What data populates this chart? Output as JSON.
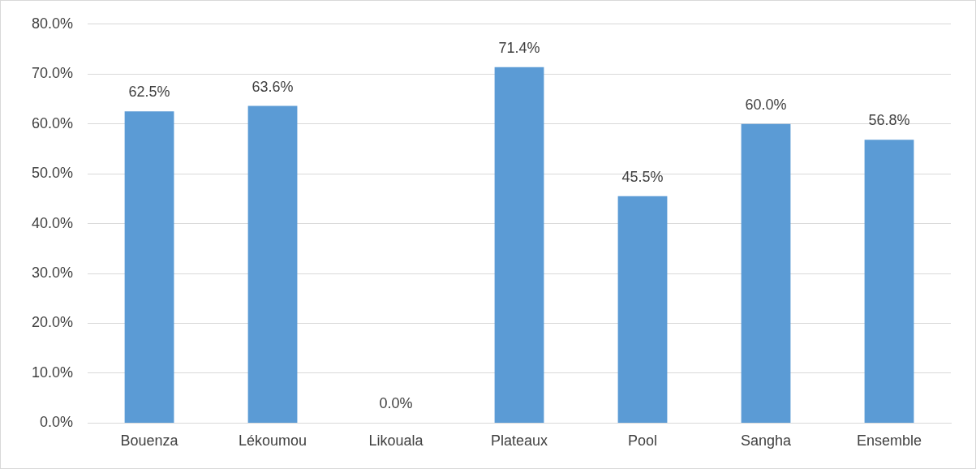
{
  "chart_data": {
    "type": "bar",
    "categories": [
      "Bouenza",
      "Lékoumou",
      "Likouala",
      "Plateaux",
      "Pool",
      "Sangha",
      "Ensemble"
    ],
    "values": [
      62.5,
      63.6,
      0.0,
      71.4,
      45.5,
      60.0,
      56.8
    ],
    "value_labels": [
      "62.5%",
      "63.6%",
      "0.0%",
      "71.4%",
      "45.5%",
      "60.0%",
      "56.8%"
    ],
    "color": "#5b9bd5",
    "ylim": [
      0,
      80
    ],
    "yticks": [
      {
        "value": 0,
        "label": "0.0%"
      },
      {
        "value": 10,
        "label": "10.0%"
      },
      {
        "value": 20,
        "label": "20.0%"
      },
      {
        "value": 30,
        "label": "30.0%"
      },
      {
        "value": 40,
        "label": "40.0%"
      },
      {
        "value": 50,
        "label": "50.0%"
      },
      {
        "value": 60,
        "label": "60.0%"
      },
      {
        "value": 70,
        "label": "70.0%"
      },
      {
        "value": 80,
        "label": "80.0%"
      }
    ],
    "grid": "y",
    "legend": false
  }
}
